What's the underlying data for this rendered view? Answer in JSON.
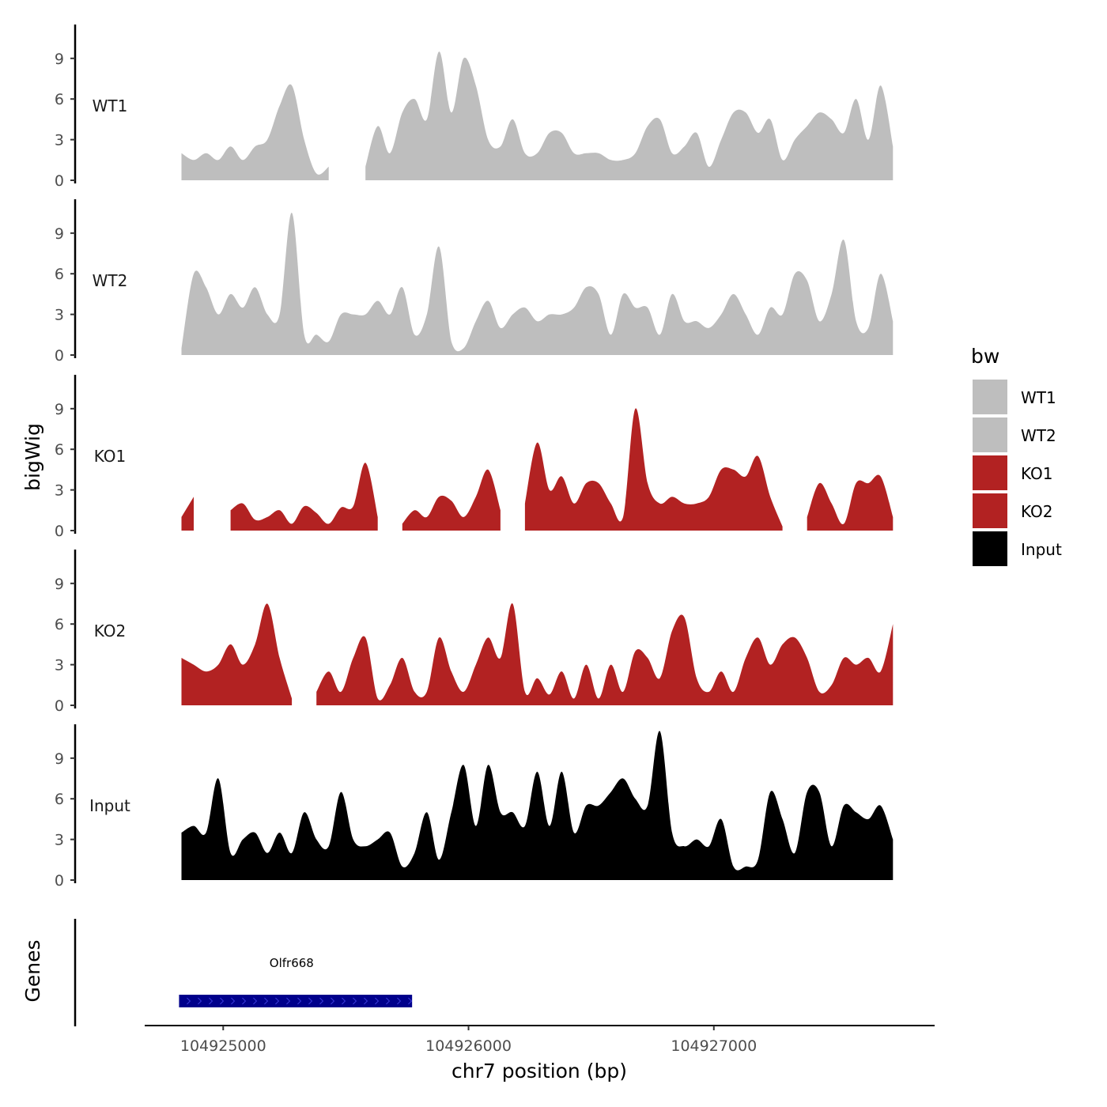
{
  "chart_data": {
    "type": "area",
    "xlabel": "chr7 position (bp)",
    "ylabel": "bigWig",
    "gene_panel_label": "Genes",
    "x_domain": [
      104924680,
      104927900
    ],
    "x_ticks": [
      104925000,
      104926000,
      104927000
    ],
    "x_tick_labels": [
      "104925000",
      "104926000",
      "104927000"
    ],
    "y_domain": [
      0,
      11.5
    ],
    "y_ticks": [
      0,
      3,
      6,
      9
    ],
    "y_tick_labels": [
      "0",
      "3",
      "6",
      "9"
    ],
    "legend": {
      "title": "bw",
      "placement": "right",
      "entries": [
        {
          "label": "WT1",
          "color": "#bebebe"
        },
        {
          "label": "WT2",
          "color": "#bebebe"
        },
        {
          "label": "KO1",
          "color": "#b22222"
        },
        {
          "label": "KO2",
          "color": "#b22222"
        },
        {
          "label": "Input",
          "color": "#000000"
        }
      ]
    },
    "x": [
      104924830,
      104924880,
      104924930,
      104924980,
      104925030,
      104925080,
      104925130,
      104925180,
      104925230,
      104925280,
      104925330,
      104925380,
      104925430,
      104925480,
      104925530,
      104925580,
      104925630,
      104925680,
      104925730,
      104925780,
      104925830,
      104925880,
      104925930,
      104925980,
      104926030,
      104926080,
      104926130,
      104926180,
      104926230,
      104926280,
      104926330,
      104926380,
      104926430,
      104926480,
      104926530,
      104926580,
      104926630,
      104926680,
      104926730,
      104926780,
      104926830,
      104926880,
      104926930,
      104926980,
      104927030,
      104927080,
      104927130,
      104927180,
      104927230,
      104927280,
      104927330,
      104927380,
      104927430,
      104927480,
      104927530,
      104927580,
      104927630,
      104927680,
      104927730
    ],
    "series": [
      {
        "name": "WT1",
        "color": "#bebebe",
        "values": [
          2.0,
          1.5,
          2.0,
          1.5,
          2.5,
          1.5,
          2.5,
          3.0,
          5.5,
          7.0,
          3.0,
          0.5,
          1.0,
          null,
          null,
          1.0,
          4.0,
          2.0,
          5.0,
          6.0,
          4.5,
          9.5,
          5.0,
          9.0,
          7.0,
          3.0,
          2.5,
          4.5,
          2.0,
          2.0,
          3.5,
          3.5,
          2.0,
          2.0,
          2.0,
          1.5,
          1.5,
          2.0,
          4.0,
          4.5,
          2.0,
          2.5,
          3.5,
          1.0,
          3.0,
          5.0,
          5.0,
          3.5,
          4.5,
          1.5,
          3.0,
          4.0,
          5.0,
          4.5,
          3.5,
          6.0,
          3.0,
          7.0,
          2.5
        ]
      },
      {
        "name": "WT2",
        "color": "#bebebe",
        "values": [
          0.5,
          6.0,
          5.0,
          3.0,
          4.5,
          3.5,
          5.0,
          3.0,
          3.0,
          10.5,
          1.5,
          1.5,
          1.0,
          3.0,
          3.0,
          3.0,
          4.0,
          3.0,
          5.0,
          1.5,
          3.0,
          8.0,
          1.0,
          0.5,
          2.5,
          4.0,
          2.0,
          3.0,
          3.5,
          2.5,
          3.0,
          3.0,
          3.5,
          5.0,
          4.5,
          1.5,
          4.5,
          3.5,
          3.5,
          1.5,
          4.5,
          2.5,
          2.5,
          2.0,
          3.0,
          4.5,
          3.0,
          1.5,
          3.5,
          3.0,
          6.0,
          5.5,
          2.5,
          4.5,
          8.5,
          2.5,
          2.0,
          6.0,
          2.5
        ]
      },
      {
        "name": "KO1",
        "color": "#b22222",
        "values": [
          1.0,
          2.5,
          null,
          null,
          1.5,
          2.0,
          0.8,
          1.0,
          1.5,
          0.5,
          1.8,
          1.3,
          0.5,
          1.7,
          1.8,
          5.0,
          1.0,
          null,
          0.5,
          1.5,
          1.0,
          2.5,
          2.2,
          1.0,
          2.5,
          4.5,
          1.5,
          null,
          2.0,
          6.5,
          3.0,
          4.0,
          2.0,
          3.5,
          3.5,
          2.0,
          1.0,
          9.0,
          3.5,
          2.0,
          2.5,
          2.0,
          2.0,
          2.5,
          4.5,
          4.5,
          4.0,
          5.5,
          2.5,
          0.3,
          null,
          1.0,
          3.5,
          2.0,
          0.5,
          3.5,
          3.5,
          4.0,
          1.0
        ]
      },
      {
        "name": "KO2",
        "color": "#b22222",
        "values": [
          3.5,
          3.0,
          2.5,
          3.0,
          4.5,
          3.0,
          4.5,
          7.5,
          3.5,
          0.5,
          null,
          1.0,
          2.5,
          1.0,
          3.5,
          5.0,
          0.5,
          1.5,
          3.5,
          1.0,
          1.0,
          5.0,
          2.5,
          1.0,
          3.0,
          5.0,
          3.5,
          7.5,
          1.0,
          2.0,
          0.8,
          2.5,
          0.5,
          3.0,
          0.5,
          3.0,
          1.0,
          4.0,
          3.5,
          2.0,
          5.5,
          6.5,
          2.0,
          1.0,
          2.5,
          1.0,
          3.5,
          5.0,
          3.0,
          4.5,
          5.0,
          3.5,
          1.0,
          1.5,
          3.5,
          3.0,
          3.5,
          2.5,
          6.0
        ]
      },
      {
        "name": "Input",
        "color": "#000000",
        "values": [
          3.5,
          4.0,
          3.5,
          7.5,
          2.0,
          3.0,
          3.5,
          2.0,
          3.5,
          2.0,
          5.0,
          3.0,
          2.5,
          6.5,
          3.0,
          2.5,
          3.0,
          3.5,
          1.0,
          2.0,
          5.0,
          1.5,
          5.0,
          8.5,
          4.0,
          8.5,
          5.0,
          5.0,
          4.0,
          8.0,
          4.0,
          8.0,
          3.5,
          5.5,
          5.5,
          6.5,
          7.5,
          6.0,
          5.5,
          11.0,
          3.5,
          2.5,
          3.0,
          2.5,
          4.5,
          1.0,
          1.0,
          1.5,
          6.5,
          4.5,
          2.0,
          6.5,
          6.5,
          2.5,
          5.5,
          5.0,
          4.5,
          5.5,
          3.0
        ]
      }
    ],
    "genes": [
      {
        "name": "Olfr668",
        "start": 104924820,
        "end": 104925770,
        "color": "#00008b"
      }
    ]
  }
}
